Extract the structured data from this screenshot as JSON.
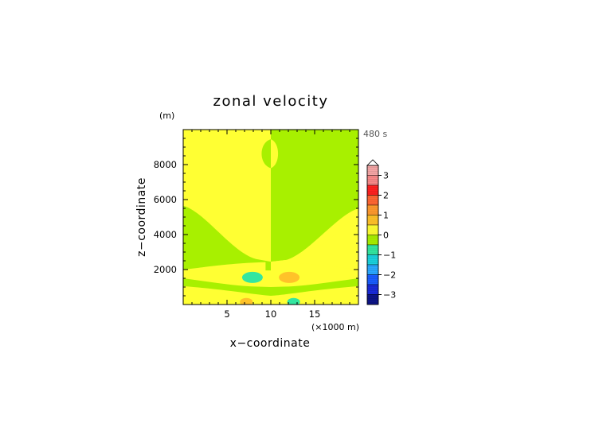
{
  "chart_data": {
    "type": "heatmap",
    "title": "zonal velocity",
    "xlabel": "x−coordinate",
    "ylabel": "z−coordinate",
    "x_unit": "(×1000 m)",
    "y_unit": "(m)",
    "time_label": "480 s",
    "xlim": [
      0,
      20
    ],
    "ylim": [
      0,
      10000
    ],
    "x_ticks": [
      {
        "value": 5,
        "label": "5"
      },
      {
        "value": 10,
        "label": "10"
      },
      {
        "value": 15,
        "label": "15"
      }
    ],
    "y_ticks": [
      {
        "value": 2000,
        "label": "2000"
      },
      {
        "value": 4000,
        "label": "4000"
      },
      {
        "value": 6000,
        "label": "6000"
      },
      {
        "value": 8000,
        "label": "8000"
      }
    ],
    "colorbar": {
      "range": [
        -3.5,
        3.5
      ],
      "step": 0.5,
      "extend_max": true,
      "tick_labels": [
        {
          "value": 3,
          "label": "3"
        },
        {
          "value": 2,
          "label": "2"
        },
        {
          "value": 1,
          "label": "1"
        },
        {
          "value": 0,
          "label": "0"
        },
        {
          "value": -1,
          "label": "−1"
        },
        {
          "value": -2,
          "label": "−2"
        },
        {
          "value": -3,
          "label": "−3"
        }
      ],
      "levels": [
        {
          "from": 3.0,
          "to": 3.5,
          "color": "#f4a6a6"
        },
        {
          "from": 2.5,
          "to": 3.0,
          "color": "#f78888"
        },
        {
          "from": 2.0,
          "to": 2.5,
          "color": "#ff2020"
        },
        {
          "from": 1.5,
          "to": 2.0,
          "color": "#ff6633"
        },
        {
          "from": 1.0,
          "to": 1.5,
          "color": "#ff9a2e"
        },
        {
          "from": 0.5,
          "to": 1.0,
          "color": "#ffc229"
        },
        {
          "from": 0.0,
          "to": 0.5,
          "color": "#ffff33"
        },
        {
          "from": -0.5,
          "to": 0.0,
          "color": "#a8f000"
        },
        {
          "from": -1.0,
          "to": -0.5,
          "color": "#33e6a0"
        },
        {
          "from": -1.5,
          "to": -1.0,
          "color": "#1ad2dd"
        },
        {
          "from": -2.0,
          "to": -1.5,
          "color": "#2aa8ff"
        },
        {
          "from": -2.5,
          "to": -2.0,
          "color": "#1a5cff"
        },
        {
          "from": -3.0,
          "to": -2.5,
          "color": "#1a2ad8"
        },
        {
          "from": -3.5,
          "to": -3.0,
          "color": "#0d1488"
        }
      ]
    },
    "fields": {
      "background": {
        "value": 0.2,
        "color": "#ffff33"
      },
      "regions": [
        {
          "name": "right-upper-region",
          "value": -0.2,
          "color": "#a8f000"
        },
        {
          "name": "left-wave-region",
          "value": -0.2,
          "color": "#a8f000"
        },
        {
          "name": "right-wave-region",
          "value": 0.2,
          "color": "#ffff33"
        },
        {
          "name": "top-lens-left",
          "value": -0.2,
          "color": "#a8f000"
        },
        {
          "name": "top-lens-right",
          "value": 0.2,
          "color": "#ffff33"
        },
        {
          "name": "lower-left-band",
          "value": -0.2,
          "color": "#a8f000"
        },
        {
          "name": "lower-right-band",
          "value": -0.2,
          "color": "#a8f000"
        }
      ],
      "blobs": [
        {
          "name": "negative-blob-left",
          "x": 7.9,
          "z": 1550,
          "value": -0.8,
          "color": "#33e6a0"
        },
        {
          "name": "positive-blob-right",
          "x": 12.1,
          "z": 1550,
          "value": 0.8,
          "color": "#ffc229"
        },
        {
          "name": "positive-blob-bottom-left",
          "x": 7.2,
          "z": 150,
          "value": 0.8,
          "color": "#ffc229"
        },
        {
          "name": "negative-blob-bottom-right",
          "x": 12.6,
          "z": 150,
          "value": -0.8,
          "color": "#33e6a0"
        }
      ]
    }
  }
}
